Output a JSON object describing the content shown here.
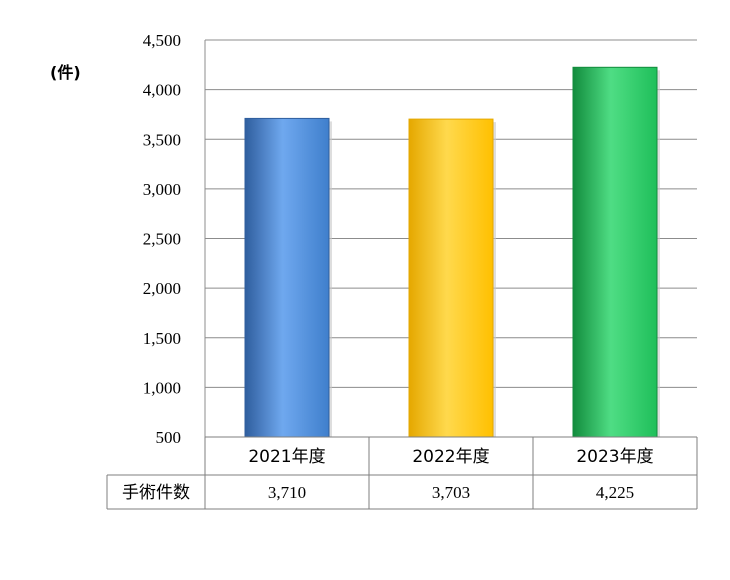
{
  "chart_data": {
    "type": "bar",
    "unit_label": "(件)",
    "categories": [
      "2021年度",
      "2022年度",
      "2023年度"
    ],
    "series": [
      {
        "values": [
          3710,
          3703,
          4225
        ]
      }
    ],
    "table": {
      "row_label": "手術件数",
      "values": [
        "3,710",
        "3,703",
        "4,225"
      ]
    },
    "ylim": [
      500,
      4500
    ],
    "yticks": [
      500,
      1000,
      1500,
      2000,
      2500,
      3000,
      3500,
      4000,
      4500
    ],
    "ytick_labels": [
      "500",
      "1,000",
      "1,500",
      "2,000",
      "2,500",
      "3,000",
      "3,500",
      "4,000",
      "4,500"
    ],
    "grid": true,
    "bar_colors": [
      "#3f7fcc",
      "#ffc000",
      "#1fbf5a"
    ],
    "bar_colors_light": [
      "#6fa8ef",
      "#ffd94d",
      "#4fdd84"
    ],
    "bar_colors_dark": [
      "#2f5e9e",
      "#e5a800",
      "#128c3d"
    ]
  }
}
